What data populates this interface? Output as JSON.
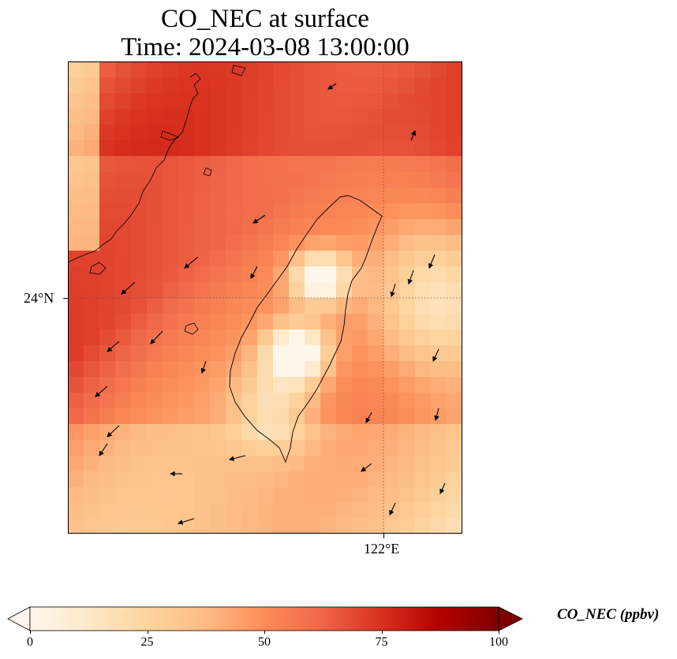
{
  "title": {
    "line1": "CO_NEC at surface",
    "line2": "Time: 2024-03-08 13:00:00"
  },
  "map": {
    "lat_label": "24°N",
    "lon_label": "122°E",
    "colormap": "OrRd",
    "colors": {
      "low": "#fff7ec",
      "mid": "#fc8d59",
      "high": "#b30000",
      "extend_high": "#7f0000",
      "coast": "#000000",
      "wind_arrow": "#000000"
    }
  },
  "colorbar": {
    "label": "CO_NEC (ppbv)",
    "min": 0,
    "max": 100,
    "extend": "both",
    "ticks": [
      "0",
      "25",
      "50",
      "75",
      "100"
    ]
  }
}
